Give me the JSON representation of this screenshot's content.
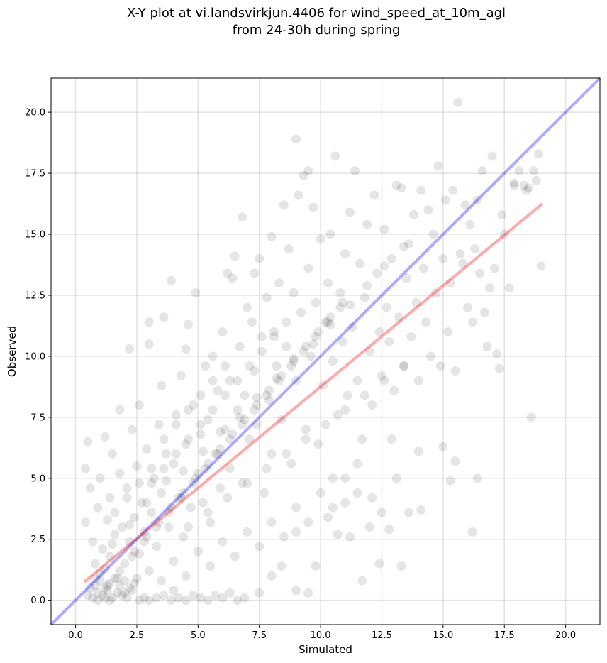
{
  "chart_data": {
    "type": "scatter",
    "title": "X-Y plot at vi.landsvirkjun.4406 for wind_speed_at_10m_agl",
    "subtitle": "from 24-30h during spring",
    "xlabel": "Simulated",
    "ylabel": "Observed",
    "xlim": [
      -1.0,
      21.4
    ],
    "ylim": [
      -1.0,
      21.4
    ],
    "xticks": [
      "0.0",
      "2.5",
      "5.0",
      "7.5",
      "10.0",
      "12.5",
      "15.0",
      "17.5",
      "20.0"
    ],
    "yticks": [
      "0.0",
      "2.5",
      "5.0",
      "7.5",
      "10.0",
      "12.5",
      "15.0",
      "17.5",
      "20.0"
    ],
    "grid": true,
    "point_color": "#000000",
    "reference_line": {
      "x": [
        -1.0,
        21.4
      ],
      "y": [
        -1.0,
        21.4
      ],
      "color": "#0000ff"
    },
    "fit_line": {
      "x": [
        0.35,
        19.05
      ],
      "y": [
        0.75,
        16.25
      ],
      "color": "#ff0000"
    },
    "points": [
      [
        0.5,
        0.2
      ],
      [
        0.7,
        0.1
      ],
      [
        0.9,
        0.3
      ],
      [
        1.1,
        0.2
      ],
      [
        1.3,
        0.4
      ],
      [
        1.5,
        0.1
      ],
      [
        1.7,
        0.3
      ],
      [
        1.9,
        0.2
      ],
      [
        2.1,
        0.1
      ],
      [
        2.3,
        0.4
      ],
      [
        0.6,
        0.5
      ],
      [
        0.8,
        0.6
      ],
      [
        1.0,
        0.8
      ],
      [
        1.2,
        0.5
      ],
      [
        1.4,
        0.7
      ],
      [
        1.6,
        0.9
      ],
      [
        1.8,
        0.6
      ],
      [
        2.0,
        0.8
      ],
      [
        2.2,
        0.5
      ],
      [
        2.4,
        0.7
      ],
      [
        0.9,
        0.0
      ],
      [
        1.2,
        0.1
      ],
      [
        1.4,
        0.0
      ],
      [
        2.6,
        0.0
      ],
      [
        2.8,
        0.1
      ],
      [
        3.0,
        0.0
      ],
      [
        3.3,
        0.1
      ],
      [
        3.6,
        0.2
      ],
      [
        3.9,
        0.0
      ],
      [
        4.2,
        0.1
      ],
      [
        4.5,
        0.0
      ],
      [
        4.8,
        0.2
      ],
      [
        5.1,
        0.1
      ],
      [
        5.4,
        0.0
      ],
      [
        5.7,
        0.2
      ],
      [
        6.0,
        0.1
      ],
      [
        6.3,
        0.3
      ],
      [
        6.6,
        0.0
      ],
      [
        6.9,
        0.1
      ],
      [
        4.0,
        0.4
      ],
      [
        0.4,
        3.2
      ],
      [
        0.5,
        6.5
      ],
      [
        0.4,
        5.4
      ],
      [
        0.6,
        4.6
      ],
      [
        0.7,
        2.4
      ],
      [
        0.8,
        1.5
      ],
      [
        0.9,
        3.8
      ],
      [
        1.0,
        1.1
      ],
      [
        1.0,
        5.0
      ],
      [
        1.1,
        2.1
      ],
      [
        1.2,
        6.7
      ],
      [
        1.2,
        1.3
      ],
      [
        1.3,
        3.3
      ],
      [
        1.4,
        4.2
      ],
      [
        1.4,
        1.8
      ],
      [
        1.5,
        6.0
      ],
      [
        1.6,
        2.7
      ],
      [
        1.7,
        0.9
      ],
      [
        1.8,
        5.2
      ],
      [
        1.8,
        7.8
      ],
      [
        1.9,
        3.0
      ],
      [
        2.0,
        1.5
      ],
      [
        2.1,
        4.6
      ],
      [
        2.2,
        2.4
      ],
      [
        2.2,
        10.3
      ],
      [
        2.3,
        7.0
      ],
      [
        2.4,
        3.4
      ],
      [
        2.5,
        5.5
      ],
      [
        2.6,
        1.9
      ],
      [
        2.6,
        8.0
      ],
      [
        2.7,
        4.0
      ],
      [
        2.8,
        2.8
      ],
      [
        2.9,
        6.2
      ],
      [
        3.0,
        11.4
      ],
      [
        3.0,
        10.5
      ],
      [
        3.1,
        3.6
      ],
      [
        3.2,
        5.0
      ],
      [
        3.3,
        2.2
      ],
      [
        3.4,
        7.2
      ],
      [
        3.5,
        8.8
      ],
      [
        3.5,
        4.4
      ],
      [
        3.6,
        11.6
      ],
      [
        3.7,
        6.0
      ],
      [
        3.8,
        3.0
      ],
      [
        3.9,
        13.1
      ],
      [
        4.0,
        5.6
      ],
      [
        4.1,
        7.6
      ],
      [
        4.2,
        4.2
      ],
      [
        4.3,
        9.2
      ],
      [
        4.4,
        2.6
      ],
      [
        4.5,
        10.3
      ],
      [
        4.5,
        6.4
      ],
      [
        4.6,
        11.3
      ],
      [
        4.7,
        3.8
      ],
      [
        4.8,
        8.0
      ],
      [
        4.9,
        12.6
      ],
      [
        5.0,
        5.2
      ],
      [
        5.1,
        6.8
      ],
      [
        5.2,
        4.0
      ],
      [
        5.3,
        9.6
      ],
      [
        5.4,
        7.4
      ],
      [
        5.5,
        3.2
      ],
      [
        5.6,
        10.0
      ],
      [
        5.7,
        6.0
      ],
      [
        5.8,
        8.6
      ],
      [
        5.9,
        4.6
      ],
      [
        6.0,
        11.0
      ],
      [
        6.1,
        7.0
      ],
      [
        6.2,
        13.4
      ],
      [
        6.3,
        5.4
      ],
      [
        6.3,
        9.0
      ],
      [
        6.4,
        13.2
      ],
      [
        6.5,
        14.1
      ],
      [
        6.6,
        7.8
      ],
      [
        6.7,
        10.4
      ],
      [
        6.8,
        15.7
      ],
      [
        6.8,
        4.8
      ],
      [
        6.9,
        8.4
      ],
      [
        7.0,
        12.0
      ],
      [
        7.1,
        6.6
      ],
      [
        7.2,
        11.4
      ],
      [
        7.3,
        13.4
      ],
      [
        7.3,
        9.4
      ],
      [
        7.4,
        7.2
      ],
      [
        7.5,
        14.0
      ],
      [
        7.6,
        10.8
      ],
      [
        7.7,
        4.4
      ],
      [
        7.8,
        12.4
      ],
      [
        7.9,
        8.2
      ],
      [
        8.0,
        14.9
      ],
      [
        8.0,
        6.0
      ],
      [
        8.1,
        11.0
      ],
      [
        8.2,
        9.6
      ],
      [
        8.3,
        13.0
      ],
      [
        8.4,
        7.4
      ],
      [
        8.5,
        16.2
      ],
      [
        8.6,
        10.4
      ],
      [
        8.7,
        14.4
      ],
      [
        8.8,
        5.6
      ],
      [
        8.9,
        12.6
      ],
      [
        9.0,
        18.9
      ],
      [
        9.0,
        9.0
      ],
      [
        9.1,
        16.6
      ],
      [
        9.2,
        11.8
      ],
      [
        9.3,
        17.4
      ],
      [
        9.4,
        7.0
      ],
      [
        9.5,
        13.6
      ],
      [
        9.5,
        17.6
      ],
      [
        9.6,
        10.0
      ],
      [
        9.7,
        16.1
      ],
      [
        9.8,
        12.2
      ],
      [
        9.9,
        6.4
      ],
      [
        10.0,
        14.8
      ],
      [
        10.1,
        8.8
      ],
      [
        10.2,
        11.4
      ],
      [
        10.3,
        13.0
      ],
      [
        10.4,
        15.0
      ],
      [
        10.5,
        9.8
      ],
      [
        10.6,
        18.2
      ],
      [
        10.7,
        7.6
      ],
      [
        10.8,
        12.6
      ],
      [
        10.9,
        10.6
      ],
      [
        11.0,
        14.2
      ],
      [
        11.1,
        8.4
      ],
      [
        11.2,
        15.9
      ],
      [
        11.3,
        11.2
      ],
      [
        11.4,
        17.6
      ],
      [
        11.5,
        9.0
      ],
      [
        11.6,
        13.8
      ],
      [
        11.7,
        6.6
      ],
      [
        11.8,
        12.4
      ],
      [
        11.9,
        15.4
      ],
      [
        12.0,
        10.2
      ],
      [
        12.1,
        8.0
      ],
      [
        12.2,
        16.6
      ],
      [
        12.3,
        13.4
      ],
      [
        12.4,
        11.0
      ],
      [
        12.5,
        9.2
      ],
      [
        12.6,
        15.2
      ],
      [
        12.7,
        12.0
      ],
      [
        12.8,
        10.6
      ],
      [
        12.9,
        14.0
      ],
      [
        13.0,
        8.6
      ],
      [
        13.1,
        17.0
      ],
      [
        13.2,
        11.6
      ],
      [
        13.3,
        16.9
      ],
      [
        13.4,
        9.6
      ],
      [
        13.5,
        13.2
      ],
      [
        13.6,
        14.6
      ],
      [
        13.7,
        10.8
      ],
      [
        13.8,
        15.8
      ],
      [
        13.9,
        12.2
      ],
      [
        14.0,
        9.0
      ],
      [
        14.1,
        16.8
      ],
      [
        14.2,
        13.6
      ],
      [
        14.3,
        11.4
      ],
      [
        14.4,
        16.0
      ],
      [
        14.5,
        10.0
      ],
      [
        14.6,
        15.0
      ],
      [
        14.7,
        12.6
      ],
      [
        14.8,
        17.8
      ],
      [
        14.9,
        9.6
      ],
      [
        15.0,
        14.0
      ],
      [
        15.1,
        16.4
      ],
      [
        15.2,
        11.0
      ],
      [
        15.3,
        13.0
      ],
      [
        15.4,
        16.8
      ],
      [
        15.5,
        9.4
      ],
      [
        15.6,
        20.4
      ],
      [
        15.7,
        14.2
      ],
      [
        15.8,
        13.8
      ],
      [
        15.9,
        16.2
      ],
      [
        16.0,
        12.0
      ],
      [
        16.1,
        15.4
      ],
      [
        16.2,
        11.4
      ],
      [
        16.3,
        14.4
      ],
      [
        16.4,
        16.4
      ],
      [
        16.5,
        13.4
      ],
      [
        16.6,
        17.6
      ],
      [
        16.7,
        11.8
      ],
      [
        16.8,
        10.4
      ],
      [
        16.9,
        12.8
      ],
      [
        17.0,
        18.2
      ],
      [
        17.1,
        13.6
      ],
      [
        17.2,
        10.1
      ],
      [
        17.3,
        9.5
      ],
      [
        17.4,
        15.8
      ],
      [
        17.5,
        15.0
      ],
      [
        17.7,
        12.8
      ],
      [
        17.9,
        17.1
      ],
      [
        18.1,
        17.6
      ],
      [
        18.3,
        17.0
      ],
      [
        18.5,
        16.9
      ],
      [
        18.6,
        7.5
      ],
      [
        18.7,
        17.6
      ],
      [
        18.8,
        17.2
      ],
      [
        18.9,
        18.3
      ],
      [
        19.0,
        13.7
      ],
      [
        18.4,
        16.8
      ],
      [
        17.9,
        17.0
      ],
      [
        8.0,
        1.0
      ],
      [
        7.5,
        0.3
      ],
      [
        8.4,
        1.4
      ],
      [
        9.0,
        0.4
      ],
      [
        9.5,
        0.3
      ],
      [
        9.0,
        2.8
      ],
      [
        9.8,
        1.4
      ],
      [
        10.3,
        3.4
      ],
      [
        10.7,
        2.7
      ],
      [
        11.2,
        2.6
      ],
      [
        11.7,
        0.8
      ],
      [
        12.1,
        4.2
      ],
      [
        12.4,
        1.5
      ],
      [
        12.5,
        3.6
      ],
      [
        12.8,
        2.9
      ],
      [
        13.3,
        1.4
      ],
      [
        13.6,
        3.6
      ],
      [
        14.1,
        3.7
      ],
      [
        15.0,
        6.3
      ],
      [
        15.3,
        4.9
      ],
      [
        15.5,
        5.7
      ],
      [
        16.2,
        2.8
      ],
      [
        16.4,
        5.0
      ],
      [
        14.0,
        6.1
      ],
      [
        13.1,
        5.0
      ],
      [
        12.9,
        6.6
      ],
      [
        11.0,
        4.0
      ],
      [
        10.5,
        5.0
      ],
      [
        11.5,
        5.6
      ],
      [
        12.0,
        3.0
      ],
      [
        2.0,
        0.3
      ],
      [
        2.5,
        0.9
      ],
      [
        3.0,
        1.2
      ],
      [
        3.5,
        0.8
      ],
      [
        4.0,
        1.6
      ],
      [
        4.5,
        1.0
      ],
      [
        5.0,
        2.0
      ],
      [
        5.5,
        1.4
      ],
      [
        6.0,
        2.4
      ],
      [
        6.5,
        1.8
      ],
      [
        7.0,
        2.8
      ],
      [
        7.5,
        2.2
      ],
      [
        8.0,
        3.2
      ],
      [
        8.5,
        2.6
      ],
      [
        9.0,
        3.8
      ],
      [
        9.5,
        3.2
      ],
      [
        10.0,
        4.4
      ],
      [
        10.5,
        3.8
      ],
      [
        11.0,
        5.0
      ],
      [
        11.5,
        4.4
      ],
      [
        2.4,
        2.0
      ],
      [
        2.9,
        2.6
      ],
      [
        3.4,
        3.2
      ],
      [
        3.9,
        3.8
      ],
      [
        4.4,
        4.4
      ],
      [
        4.9,
        5.0
      ],
      [
        5.4,
        5.6
      ],
      [
        5.9,
        6.2
      ],
      [
        6.4,
        6.8
      ],
      [
        6.9,
        7.4
      ],
      [
        7.4,
        8.0
      ],
      [
        7.9,
        8.6
      ],
      [
        8.4,
        9.2
      ],
      [
        8.9,
        9.8
      ],
      [
        9.4,
        10.4
      ],
      [
        9.9,
        11.0
      ],
      [
        10.4,
        11.6
      ],
      [
        10.9,
        12.2
      ],
      [
        3.1,
        4.8
      ],
      [
        3.6,
        5.4
      ],
      [
        4.1,
        6.0
      ],
      [
        4.6,
        6.6
      ],
      [
        5.1,
        7.2
      ],
      [
        5.6,
        7.8
      ],
      [
        6.1,
        8.4
      ],
      [
        6.6,
        9.0
      ],
      [
        7.1,
        9.6
      ],
      [
        7.6,
        10.2
      ],
      [
        8.1,
        10.8
      ],
      [
        8.6,
        11.4
      ],
      [
        1.6,
        3.6
      ],
      [
        2.1,
        4.2
      ],
      [
        2.6,
        4.8
      ],
      [
        3.1,
        5.4
      ],
      [
        3.6,
        6.6
      ],
      [
        4.1,
        7.2
      ],
      [
        4.6,
        7.8
      ],
      [
        5.1,
        8.4
      ],
      [
        5.6,
        9.0
      ],
      [
        6.1,
        9.6
      ],
      [
        1.3,
        0.6
      ],
      [
        1.8,
        1.2
      ],
      [
        2.3,
        1.8
      ],
      [
        2.8,
        2.4
      ],
      [
        3.3,
        3.0
      ],
      [
        3.8,
        3.6
      ],
      [
        4.3,
        4.2
      ],
      [
        4.8,
        4.8
      ],
      [
        5.3,
        5.4
      ],
      [
        5.8,
        6.0
      ],
      [
        6.3,
        6.6
      ],
      [
        6.8,
        7.2
      ],
      [
        7.3,
        7.8
      ],
      [
        7.8,
        8.4
      ],
      [
        8.3,
        9.0
      ],
      [
        8.8,
        9.6
      ],
      [
        9.3,
        10.2
      ],
      [
        9.8,
        10.8
      ],
      [
        10.3,
        11.4
      ],
      [
        10.8,
        12.0
      ],
      [
        0.8,
        0.9
      ],
      [
        1.5,
        2.3
      ],
      [
        2.2,
        3.1
      ],
      [
        2.9,
        4.0
      ],
      [
        3.7,
        4.9
      ],
      [
        4.4,
        5.3
      ],
      [
        5.2,
        6.1
      ],
      [
        5.9,
        6.9
      ],
      [
        6.7,
        7.5
      ],
      [
        7.4,
        8.3
      ],
      [
        8.2,
        9.1
      ],
      [
        8.9,
        9.9
      ],
      [
        9.7,
        10.5
      ],
      [
        10.4,
        11.3
      ],
      [
        11.2,
        12.1
      ],
      [
        11.9,
        12.9
      ],
      [
        12.6,
        13.7
      ],
      [
        13.4,
        14.5
      ],
      [
        4.6,
        3.0
      ],
      [
        5.4,
        3.6
      ],
      [
        6.2,
        4.2
      ],
      [
        7.0,
        4.8
      ],
      [
        7.8,
        5.4
      ],
      [
        8.6,
        6.0
      ],
      [
        9.4,
        6.6
      ],
      [
        10.2,
        7.2
      ],
      [
        11.0,
        7.8
      ],
      [
        11.8,
        8.4
      ],
      [
        12.6,
        9.0
      ],
      [
        13.4,
        9.6
      ]
    ]
  }
}
